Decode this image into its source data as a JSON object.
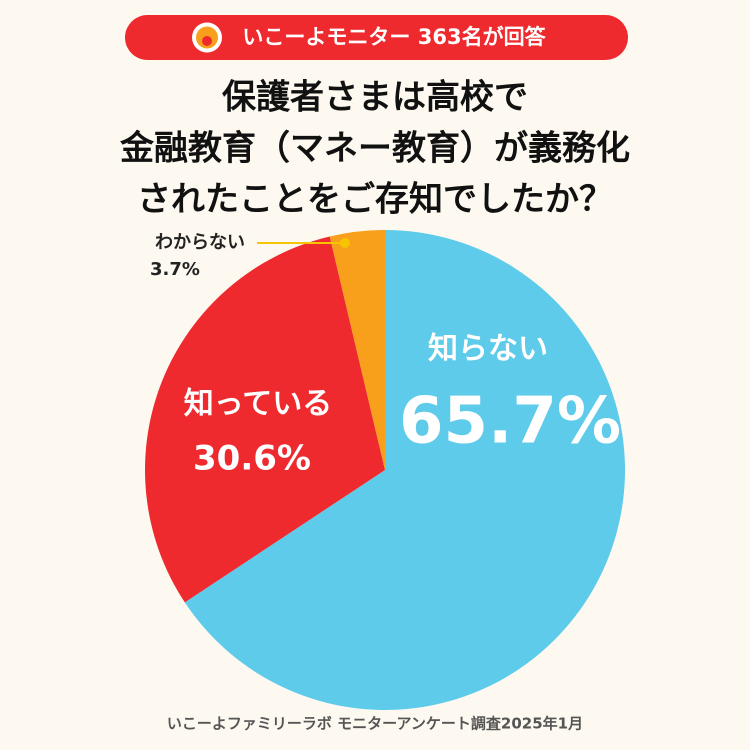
{
  "badge": "いこーよモニター 363名が回答",
  "chart_data": {
    "type": "pie",
    "title": [
      "保護者さまは高校で",
      "金融教育（マネー教育）が義務化",
      "されたことをご存知でしたか？"
    ],
    "categories": [
      "知らない",
      "知っている",
      "わからない"
    ],
    "values": [
      65.7,
      30.6,
      3.7
    ],
    "value_labels": [
      "65.7%",
      "30.6%",
      "3.7%"
    ],
    "colors": [
      "#5ecbea",
      "#ee2a2e",
      "#f8a01c"
    ],
    "source": "いこーよファミリーラボ モニターアンケート調査2025年1月"
  }
}
